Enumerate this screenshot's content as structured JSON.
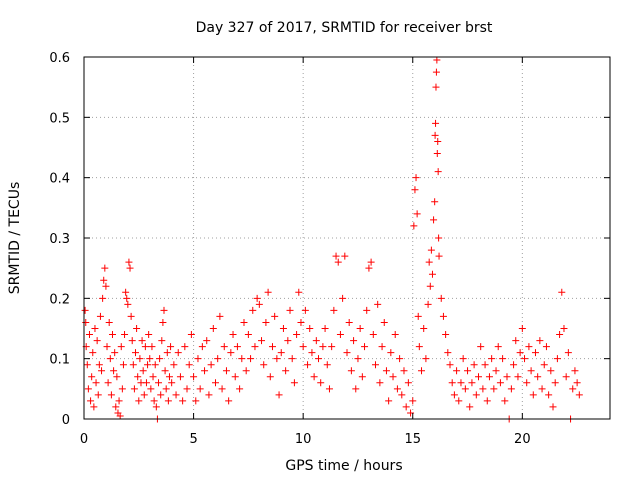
{
  "chart_data": {
    "type": "scatter",
    "title": "Day 327 of 2017, SRMTID for receiver brst",
    "xlabel": "GPS time / hours",
    "ylabel": "SRMTID / TECUs",
    "xlim": [
      0,
      24
    ],
    "ylim": [
      0,
      0.6
    ],
    "xticks": [
      0,
      5,
      10,
      15,
      20
    ],
    "xtick_labels": [
      "0",
      "5",
      "10",
      "15",
      "20"
    ],
    "yticks": [
      0,
      0.1,
      0.2,
      0.3,
      0.4,
      0.5,
      0.6
    ],
    "ytick_labels": [
      "0",
      "0.1",
      "0.2",
      "0.3",
      "0.4",
      "0.5",
      "0.6"
    ],
    "grid": true,
    "marker": "+",
    "series": [
      {
        "name": "SRMTID",
        "color": "#ff0000",
        "points": [
          [
            0.05,
            0.18
          ],
          [
            0.08,
            0.16
          ],
          [
            0.1,
            0.12
          ],
          [
            0.15,
            0.09
          ],
          [
            0.2,
            0.05
          ],
          [
            0.25,
            0.14
          ],
          [
            0.3,
            0.03
          ],
          [
            0.35,
            0.07
          ],
          [
            0.4,
            0.11
          ],
          [
            0.45,
            0.02
          ],
          [
            0.5,
            0.15
          ],
          [
            0.55,
            0.06
          ],
          [
            0.6,
            0.13
          ],
          [
            0.65,
            0.04
          ],
          [
            0.7,
            0.09
          ],
          [
            0.75,
            0.17
          ],
          [
            0.8,
            0.08
          ],
          [
            0.85,
            0.2
          ],
          [
            0.9,
            0.23
          ],
          [
            0.95,
            0.25
          ],
          [
            1.0,
            0.22
          ],
          [
            1.05,
            0.12
          ],
          [
            1.1,
            0.06
          ],
          [
            1.15,
            0.16
          ],
          [
            1.2,
            0.1
          ],
          [
            1.25,
            0.04
          ],
          [
            1.3,
            0.14
          ],
          [
            1.35,
            0.08
          ],
          [
            1.4,
            0.11
          ],
          [
            1.45,
            0.02
          ],
          [
            1.5,
            0.07
          ],
          [
            1.55,
            0.01
          ],
          [
            1.6,
            0.03
          ],
          [
            1.65,
            0.005
          ],
          [
            1.7,
            0.12
          ],
          [
            1.75,
            0.05
          ],
          [
            1.8,
            0.09
          ],
          [
            1.85,
            0.14
          ],
          [
            1.9,
            0.21
          ],
          [
            1.95,
            0.2
          ],
          [
            2.0,
            0.19
          ],
          [
            2.05,
            0.26
          ],
          [
            2.1,
            0.25
          ],
          [
            2.15,
            0.17
          ],
          [
            2.2,
            0.13
          ],
          [
            2.25,
            0.09
          ],
          [
            2.3,
            0.05
          ],
          [
            2.35,
            0.11
          ],
          [
            2.4,
            0.15
          ],
          [
            2.45,
            0.07
          ],
          [
            2.5,
            0.03
          ],
          [
            2.55,
            0.1
          ],
          [
            2.6,
            0.06
          ],
          [
            2.65,
            0.13
          ],
          [
            2.7,
            0.08
          ],
          [
            2.75,
            0.04
          ],
          [
            2.8,
            0.12
          ],
          [
            2.85,
            0.06
          ],
          [
            2.9,
            0.09
          ],
          [
            2.95,
            0.14
          ],
          [
            3.0,
            0.1
          ],
          [
            3.05,
            0.05
          ],
          [
            3.1,
            0.12
          ],
          [
            3.15,
            0.07
          ],
          [
            3.2,
            0.03
          ],
          [
            3.25,
            0.09
          ],
          [
            3.3,
            0.02
          ],
          [
            3.35,
            0.0
          ],
          [
            3.4,
            0.06
          ],
          [
            3.45,
            0.1
          ],
          [
            3.5,
            0.04
          ],
          [
            3.55,
            0.13
          ],
          [
            3.6,
            0.16
          ],
          [
            3.65,
            0.18
          ],
          [
            3.7,
            0.08
          ],
          [
            3.75,
            0.05
          ],
          [
            3.8,
            0.11
          ],
          [
            3.85,
            0.03
          ],
          [
            3.9,
            0.07
          ],
          [
            3.95,
            0.12
          ],
          [
            4.0,
            0.06
          ],
          [
            4.1,
            0.09
          ],
          [
            4.2,
            0.04
          ],
          [
            4.3,
            0.11
          ],
          [
            4.4,
            0.07
          ],
          [
            4.5,
            0.03
          ],
          [
            4.6,
            0.12
          ],
          [
            4.7,
            0.05
          ],
          [
            4.8,
            0.09
          ],
          [
            4.9,
            0.14
          ],
          [
            5.0,
            0.07
          ],
          [
            5.1,
            0.03
          ],
          [
            5.2,
            0.1
          ],
          [
            5.3,
            0.05
          ],
          [
            5.4,
            0.12
          ],
          [
            5.5,
            0.08
          ],
          [
            5.6,
            0.13
          ],
          [
            5.7,
            0.04
          ],
          [
            5.8,
            0.09
          ],
          [
            5.9,
            0.15
          ],
          [
            6.0,
            0.06
          ],
          [
            6.1,
            0.1
          ],
          [
            6.2,
            0.17
          ],
          [
            6.3,
            0.05
          ],
          [
            6.4,
            0.12
          ],
          [
            6.5,
            0.08
          ],
          [
            6.6,
            0.03
          ],
          [
            6.7,
            0.11
          ],
          [
            6.8,
            0.14
          ],
          [
            6.9,
            0.07
          ],
          [
            7.0,
            0.12
          ],
          [
            7.1,
            0.05
          ],
          [
            7.2,
            0.1
          ],
          [
            7.3,
            0.16
          ],
          [
            7.4,
            0.08
          ],
          [
            7.5,
            0.14
          ],
          [
            7.6,
            0.1
          ],
          [
            7.7,
            0.18
          ],
          [
            7.8,
            0.12
          ],
          [
            7.9,
            0.2
          ],
          [
            8.0,
            0.19
          ],
          [
            8.1,
            0.13
          ],
          [
            8.2,
            0.09
          ],
          [
            8.3,
            0.16
          ],
          [
            8.4,
            0.21
          ],
          [
            8.5,
            0.07
          ],
          [
            8.6,
            0.12
          ],
          [
            8.7,
            0.17
          ],
          [
            8.8,
            0.1
          ],
          [
            8.9,
            0.04
          ],
          [
            9.0,
            0.11
          ],
          [
            9.1,
            0.15
          ],
          [
            9.2,
            0.08
          ],
          [
            9.3,
            0.13
          ],
          [
            9.4,
            0.18
          ],
          [
            9.5,
            0.1
          ],
          [
            9.6,
            0.06
          ],
          [
            9.7,
            0.14
          ],
          [
            9.8,
            0.21
          ],
          [
            9.9,
            0.16
          ],
          [
            10.0,
            0.12
          ],
          [
            10.1,
            0.18
          ],
          [
            10.2,
            0.09
          ],
          [
            10.3,
            0.15
          ],
          [
            10.4,
            0.11
          ],
          [
            10.5,
            0.07
          ],
          [
            10.6,
            0.13
          ],
          [
            10.7,
            0.1
          ],
          [
            10.8,
            0.06
          ],
          [
            10.9,
            0.12
          ],
          [
            11.0,
            0.15
          ],
          [
            11.1,
            0.09
          ],
          [
            11.2,
            0.05
          ],
          [
            11.3,
            0.12
          ],
          [
            11.4,
            0.18
          ],
          [
            11.5,
            0.27
          ],
          [
            11.6,
            0.26
          ],
          [
            11.7,
            0.14
          ],
          [
            11.8,
            0.2
          ],
          [
            11.9,
            0.27
          ],
          [
            12.0,
            0.11
          ],
          [
            12.1,
            0.16
          ],
          [
            12.2,
            0.08
          ],
          [
            12.3,
            0.13
          ],
          [
            12.4,
            0.05
          ],
          [
            12.5,
            0.1
          ],
          [
            12.6,
            0.15
          ],
          [
            12.7,
            0.07
          ],
          [
            12.8,
            0.12
          ],
          [
            12.9,
            0.18
          ],
          [
            13.0,
            0.25
          ],
          [
            13.1,
            0.26
          ],
          [
            13.2,
            0.14
          ],
          [
            13.3,
            0.09
          ],
          [
            13.4,
            0.19
          ],
          [
            13.5,
            0.06
          ],
          [
            13.6,
            0.12
          ],
          [
            13.7,
            0.16
          ],
          [
            13.8,
            0.08
          ],
          [
            13.9,
            0.03
          ],
          [
            14.0,
            0.11
          ],
          [
            14.1,
            0.07
          ],
          [
            14.2,
            0.14
          ],
          [
            14.3,
            0.05
          ],
          [
            14.4,
            0.1
          ],
          [
            14.5,
            0.04
          ],
          [
            14.6,
            0.08
          ],
          [
            14.7,
            0.02
          ],
          [
            14.8,
            0.06
          ],
          [
            14.9,
            0.01
          ],
          [
            15.0,
            0.03
          ],
          [
            15.05,
            0.32
          ],
          [
            15.1,
            0.38
          ],
          [
            15.15,
            0.4
          ],
          [
            15.2,
            0.34
          ],
          [
            15.25,
            0.17
          ],
          [
            15.3,
            0.12
          ],
          [
            15.4,
            0.08
          ],
          [
            15.5,
            0.15
          ],
          [
            15.6,
            0.1
          ],
          [
            15.7,
            0.19
          ],
          [
            15.75,
            0.26
          ],
          [
            15.8,
            0.22
          ],
          [
            15.85,
            0.28
          ],
          [
            15.9,
            0.24
          ],
          [
            15.95,
            0.33
          ],
          [
            16.0,
            0.36
          ],
          [
            16.02,
            0.47
          ],
          [
            16.04,
            0.49
          ],
          [
            16.06,
            0.55
          ],
          [
            16.08,
            0.575
          ],
          [
            16.1,
            0.595
          ],
          [
            16.12,
            0.44
          ],
          [
            16.14,
            0.46
          ],
          [
            16.16,
            0.41
          ],
          [
            16.18,
            0.3
          ],
          [
            16.2,
            0.27
          ],
          [
            16.3,
            0.2
          ],
          [
            16.4,
            0.17
          ],
          [
            16.5,
            0.14
          ],
          [
            16.6,
            0.11
          ],
          [
            16.7,
            0.09
          ],
          [
            16.8,
            0.06
          ],
          [
            16.9,
            0.04
          ],
          [
            17.0,
            0.08
          ],
          [
            17.1,
            0.03
          ],
          [
            17.2,
            0.06
          ],
          [
            17.3,
            0.1
          ],
          [
            17.4,
            0.05
          ],
          [
            17.5,
            0.08
          ],
          [
            17.6,
            0.02
          ],
          [
            17.7,
            0.06
          ],
          [
            17.8,
            0.09
          ],
          [
            17.9,
            0.04
          ],
          [
            18.0,
            0.07
          ],
          [
            18.1,
            0.12
          ],
          [
            18.2,
            0.05
          ],
          [
            18.3,
            0.09
          ],
          [
            18.4,
            0.03
          ],
          [
            18.5,
            0.07
          ],
          [
            18.6,
            0.1
          ],
          [
            18.7,
            0.05
          ],
          [
            18.8,
            0.08
          ],
          [
            18.9,
            0.12
          ],
          [
            19.0,
            0.06
          ],
          [
            19.1,
            0.1
          ],
          [
            19.2,
            0.03
          ],
          [
            19.3,
            0.07
          ],
          [
            19.4,
            0.0
          ],
          [
            19.5,
            0.05
          ],
          [
            19.6,
            0.09
          ],
          [
            19.7,
            0.13
          ],
          [
            19.8,
            0.07
          ],
          [
            19.9,
            0.11
          ],
          [
            20.0,
            0.15
          ],
          [
            20.1,
            0.1
          ],
          [
            20.2,
            0.06
          ],
          [
            20.3,
            0.12
          ],
          [
            20.4,
            0.08
          ],
          [
            20.5,
            0.04
          ],
          [
            20.6,
            0.11
          ],
          [
            20.7,
            0.07
          ],
          [
            20.8,
            0.13
          ],
          [
            20.9,
            0.05
          ],
          [
            21.0,
            0.09
          ],
          [
            21.1,
            0.12
          ],
          [
            21.2,
            0.04
          ],
          [
            21.3,
            0.08
          ],
          [
            21.4,
            0.02
          ],
          [
            21.5,
            0.06
          ],
          [
            21.6,
            0.1
          ],
          [
            21.7,
            0.14
          ],
          [
            21.8,
            0.21
          ],
          [
            21.9,
            0.15
          ],
          [
            22.0,
            0.07
          ],
          [
            22.1,
            0.11
          ],
          [
            22.2,
            0.0
          ],
          [
            22.3,
            0.05
          ],
          [
            22.4,
            0.08
          ],
          [
            22.5,
            0.06
          ],
          [
            22.6,
            0.04
          ]
        ]
      }
    ]
  }
}
